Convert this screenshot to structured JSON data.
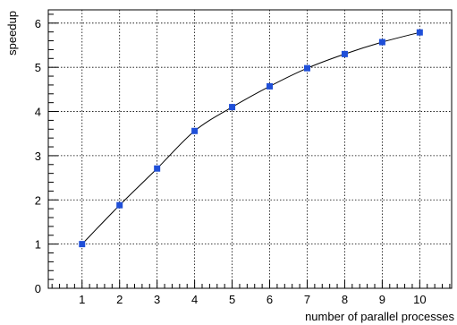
{
  "chart_data": {
    "type": "line",
    "title": "",
    "xlabel": "number of parallel processes",
    "ylabel": "speedup",
    "xlim": [
      0.1,
      10.85
    ],
    "ylim": [
      0,
      6.3
    ],
    "x_ticks": [
      1,
      2,
      3,
      4,
      5,
      6,
      7,
      8,
      9,
      10
    ],
    "y_ticks": [
      0,
      1,
      2,
      3,
      4,
      5,
      6
    ],
    "grid": true,
    "legend": "none",
    "series": [
      {
        "x": [
          1,
          2,
          3,
          4,
          5,
          6,
          7,
          8,
          9,
          10
        ],
        "values": [
          1.0,
          1.88,
          2.71,
          3.56,
          4.1,
          4.57,
          4.98,
          5.3,
          5.57,
          5.79
        ],
        "color": "#1f4fd8",
        "line_color": "#000000",
        "marker": "square"
      }
    ]
  }
}
